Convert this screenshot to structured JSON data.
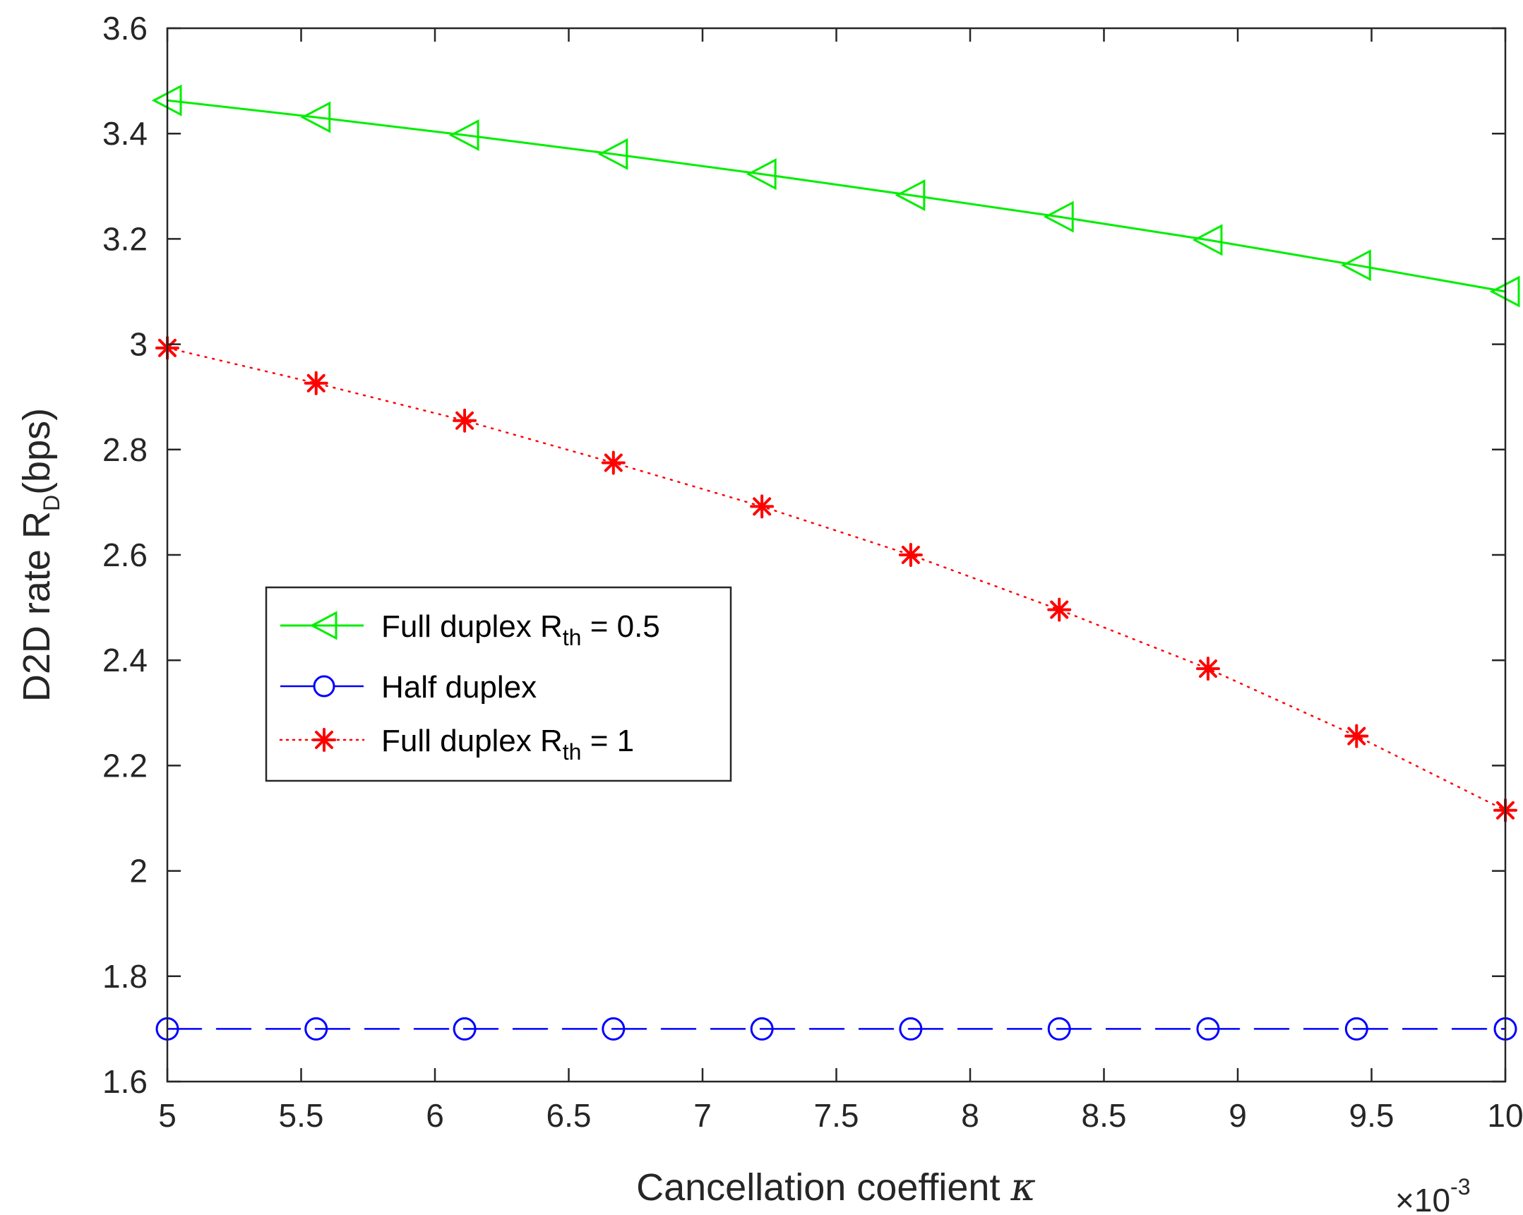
{
  "chart_data": {
    "type": "line",
    "xlabel": "Cancellation coeffient",
    "xlabel_symbol": "κ",
    "ylabel_main": "D2D rate R",
    "ylabel_sub": "D",
    "ylabel_tail": "(bps)",
    "x_exponent_prefix": "×10",
    "x_exponent_power": "-3",
    "xlim": [
      5,
      10
    ],
    "ylim": [
      1.6,
      3.6
    ],
    "xticks": [
      5,
      5.5,
      6,
      6.5,
      7,
      7.5,
      8,
      8.5,
      9,
      9.5,
      10
    ],
    "xtick_labels": [
      "5",
      "5.5",
      "6",
      "6.5",
      "7",
      "7.5",
      "8",
      "8.5",
      "9",
      "9.5",
      "10"
    ],
    "yticks": [
      1.6,
      1.8,
      2,
      2.2,
      2.4,
      2.6,
      2.8,
      3,
      3.2,
      3.4,
      3.6
    ],
    "ytick_labels": [
      "1.6",
      "1.8",
      "2",
      "2.2",
      "2.4",
      "2.6",
      "2.8",
      "3",
      "3.2",
      "3.4",
      "3.6"
    ],
    "x": [
      5.0,
      5.556,
      6.111,
      6.667,
      7.222,
      7.778,
      8.333,
      8.889,
      9.444,
      10.0
    ],
    "legend_position": "center-left",
    "series": [
      {
        "name": "Full duplex R",
        "name_sub": "th",
        "name_tail": " = 0.5",
        "color": "#00ee00",
        "line_style": "solid",
        "marker": "triangle-left",
        "values": [
          3.463,
          3.431,
          3.397,
          3.361,
          3.323,
          3.283,
          3.242,
          3.198,
          3.15,
          3.1
        ]
      },
      {
        "name": "Half duplex",
        "name_sub": "",
        "name_tail": "",
        "color": "#0000ff",
        "line_style": "dashed",
        "marker": "circle",
        "values": [
          1.7,
          1.7,
          1.7,
          1.7,
          1.7,
          1.7,
          1.7,
          1.7,
          1.7,
          1.7
        ]
      },
      {
        "name": "Full duplex R",
        "name_sub": "th",
        "name_tail": " = 1",
        "color": "#ff0000",
        "line_style": "dotted",
        "marker": "asterisk",
        "values": [
          2.993,
          2.926,
          2.855,
          2.775,
          2.692,
          2.6,
          2.496,
          2.384,
          2.256,
          2.115
        ]
      }
    ]
  }
}
